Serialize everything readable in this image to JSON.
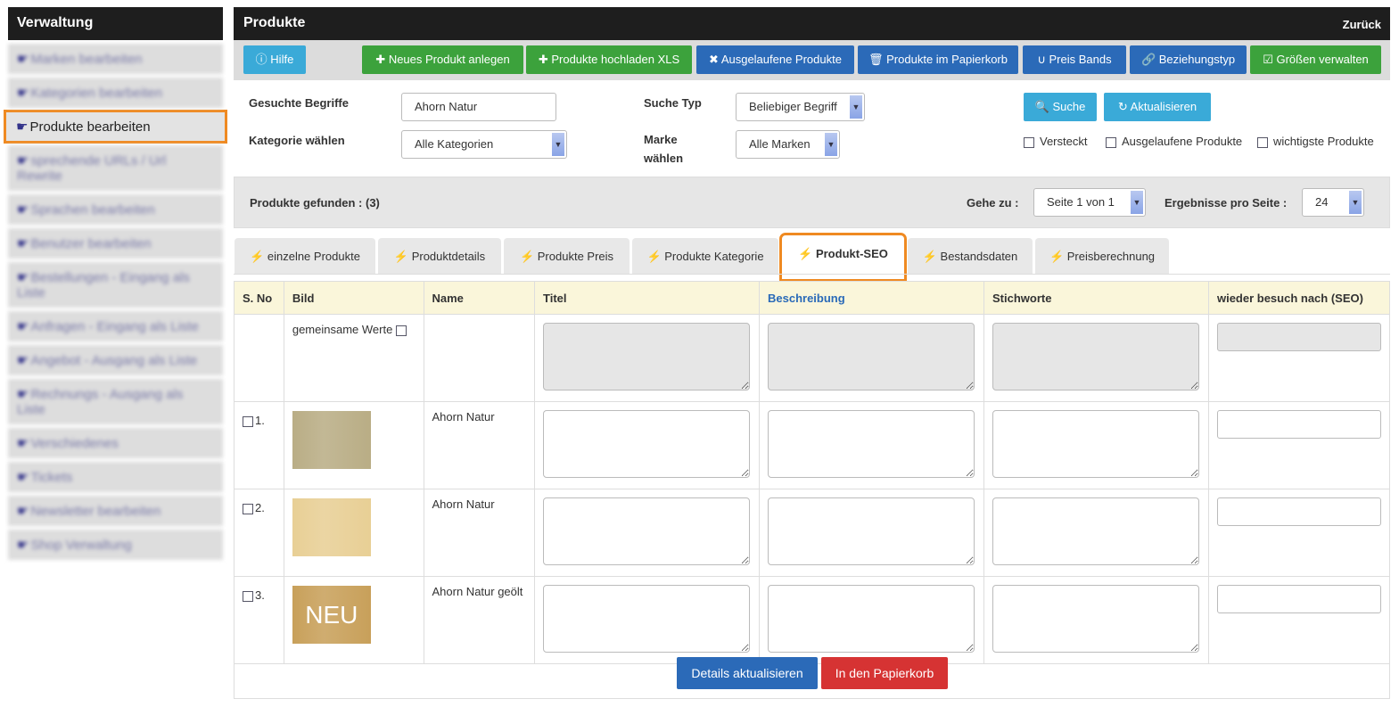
{
  "sidebar": {
    "title": "Verwaltung",
    "items": [
      {
        "label": "Marken bearbeiten"
      },
      {
        "label": "Kategorien bearbeiten"
      },
      {
        "label": "Produkte bearbeiten",
        "active": true
      },
      {
        "label": "sprechende URLs / Url Rewrite"
      },
      {
        "label": "Sprachen bearbeiten"
      },
      {
        "label": "Benutzer bearbeiten"
      },
      {
        "label": "Bestellungen - Eingang als Liste"
      },
      {
        "label": "Anfragen - Eingang als Liste"
      },
      {
        "label": "Angebot - Ausgang als Liste"
      },
      {
        "label": "Rechnungs - Ausgang als Liste"
      },
      {
        "label": "Verschiedenes"
      },
      {
        "label": "Tickets"
      },
      {
        "label": "Newsletter bearbeiten"
      },
      {
        "label": "Shop Verwaltung"
      }
    ]
  },
  "header": {
    "title": "Produkte",
    "back": "Zurück"
  },
  "toolbar": {
    "help": "Hilfe",
    "new": "Neues Produkt anlegen",
    "upload": "Produkte hochladen XLS",
    "expired": "Ausgelaufene Produkte",
    "trash": "Produkte im Papierkorb",
    "price_bands": "Preis Bands",
    "relation": "Beziehungstyp",
    "sizes": "Größen verwalten"
  },
  "search": {
    "terms_label": "Gesuchte Begriffe",
    "terms_value": "Ahorn Natur",
    "type_label": "Suche Typ",
    "type_value": "Beliebiger Begriff",
    "category_label": "Kategorie wählen",
    "category_value": "Alle Kategorien",
    "brand_label": "Marke wählen",
    "brand_value": "Alle Marken",
    "search_btn": "Suche",
    "refresh_btn": "Aktualisieren",
    "hidden": "Versteckt",
    "expired": "Ausgelaufene Produkte",
    "important": "wichtigste Produkte"
  },
  "results": {
    "found": "Produkte gefunden : (3)",
    "goto_label": "Gehe zu :",
    "page": "Seite 1 von 1",
    "per_page_label": "Ergebnisse pro Seite :",
    "per_page": "24"
  },
  "tabs": [
    "einzelne Produkte",
    "Produktdetails",
    "Produkte Preis",
    "Produkte Kategorie",
    "Produkt-SEO",
    "Bestandsdaten",
    "Preisberechnung"
  ],
  "table": {
    "headers": [
      "S. No",
      "Bild",
      "Name",
      "Titel",
      "Beschreibung",
      "Stichworte",
      "wieder besuch nach (SEO)"
    ],
    "common": "gemeinsame Werte",
    "rows": [
      {
        "no": "1.",
        "name": "Ahorn Natur",
        "color": "#b9ad85"
      },
      {
        "no": "2.",
        "name": "Ahorn Natur",
        "color": "#e8cf95"
      },
      {
        "no": "3.",
        "name": "Ahorn Natur geölt",
        "color": "#c8a05a",
        "badge": "NEU"
      }
    ]
  },
  "footer": {
    "update": "Details aktualisieren",
    "trash": "In den Papierkorb"
  }
}
